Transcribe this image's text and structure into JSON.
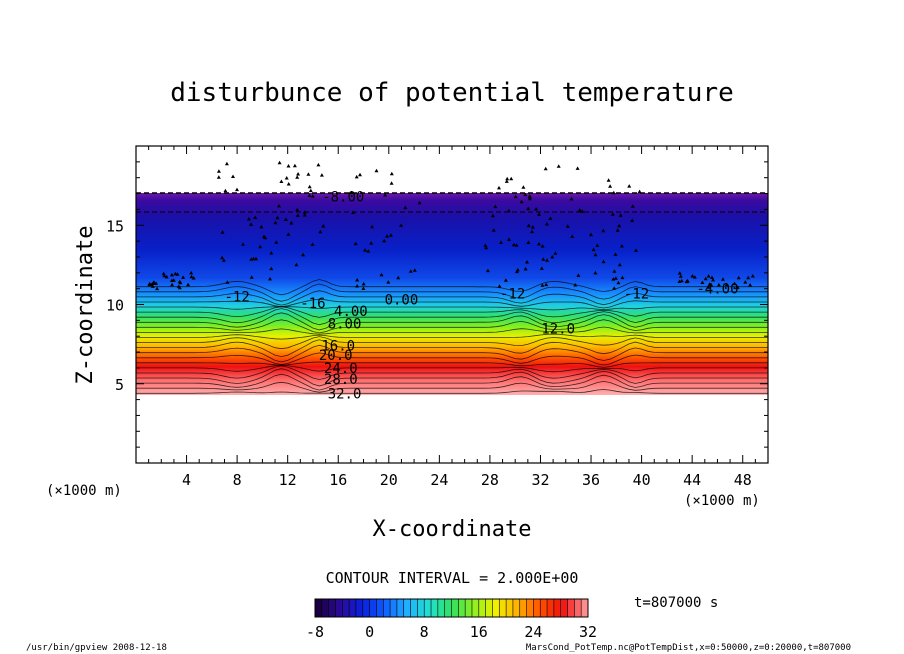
{
  "chart_data": {
    "type": "heatmap",
    "title": "disturbunce of potential temperature",
    "xlabel": "X-coordinate",
    "ylabel": "Z-coordinate",
    "x_unit_left": "(×1000 m)",
    "x_unit_right": "(×1000 m)",
    "xlim": [
      0,
      50
    ],
    "ylim": [
      0,
      20
    ],
    "x_ticks": [
      4,
      8,
      12,
      16,
      20,
      24,
      28,
      32,
      36,
      40,
      44,
      48
    ],
    "y_ticks": [
      5,
      10,
      15
    ],
    "contour_interval_text": "CONTOUR INTERVAL = 2.000E+00",
    "contour_interval": 2.0,
    "time_text": "t=807000 s",
    "colorbar": {
      "range": [
        -8,
        32
      ],
      "tick_labels": [
        "-8",
        "0",
        "8",
        "16",
        "24",
        "32"
      ],
      "tick_values": [
        -8,
        0,
        8,
        16,
        24,
        32
      ],
      "colormap": "rainbow",
      "colors": [
        "#1a0040",
        "#2a0a9a",
        "#0a20e0",
        "#1060ff",
        "#20b0ff",
        "#20e0d0",
        "#30e060",
        "#90f020",
        "#f0f000",
        "#ffb000",
        "#ff5000",
        "#f01010",
        "#ff8c8c"
      ]
    },
    "contour_labels": [
      {
        "text": "-8.00",
        "x": 16.4,
        "z": 16.8
      },
      {
        "text": "-4.00",
        "x": 46.0,
        "z": 11.0
      },
      {
        "text": "0.00",
        "x": 21.0,
        "z": 10.3
      },
      {
        "text": "4.00",
        "x": 17.0,
        "z": 9.6
      },
      {
        "text": "8.00",
        "x": 16.5,
        "z": 8.8
      },
      {
        "text": "12.0",
        "x": 33.4,
        "z": 8.5
      },
      {
        "text": "16.0",
        "x": 16.0,
        "z": 7.4
      },
      {
        "text": "20.0",
        "x": 15.8,
        "z": 6.8
      },
      {
        "text": "24.0",
        "x": 16.2,
        "z": 6.0
      },
      {
        "text": "28.0",
        "x": 16.2,
        "z": 5.3
      },
      {
        "text": "32.0",
        "x": 16.5,
        "z": 4.4
      },
      {
        "text": "-12",
        "x": 8.0,
        "z": 10.5
      },
      {
        "text": "-16",
        "x": 14.0,
        "z": 10.1
      },
      {
        "text": "-12",
        "x": 29.8,
        "z": 10.7
      },
      {
        "text": "-12",
        "x": 39.6,
        "z": 10.7
      }
    ]
  },
  "footer": {
    "left": "/usr/bin/gpview  2008-12-18",
    "right": "MarsCond_PotTemp.nc@PotTempDist,x=0:50000,z=0:20000,t=807000"
  }
}
